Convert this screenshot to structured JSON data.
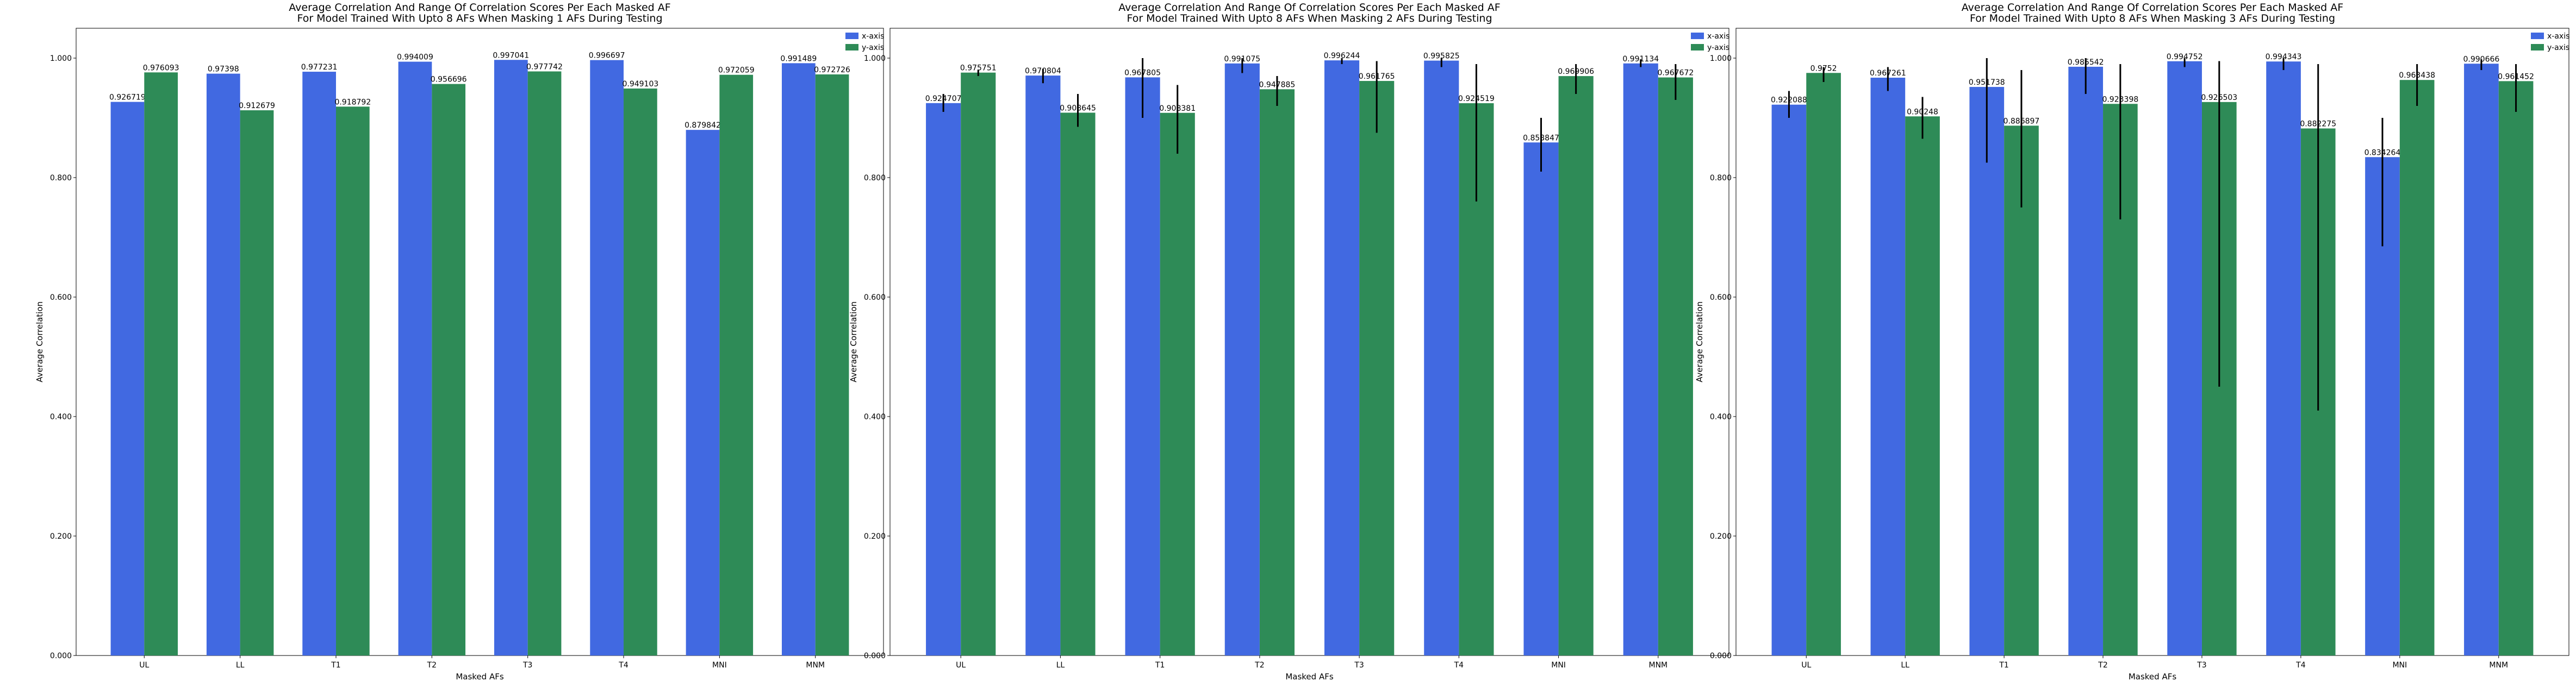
{
  "chart_data": [
    {
      "type": "bar",
      "title": "Average Correlation And Range Of Correlation Scores Per Each Masked AF\nFor Model Trained With Upto 8 AFs When Masking 1 AFs During Testing",
      "xlabel": "Masked AFs",
      "ylabel": "Average Correlation",
      "ylim": [
        0,
        1.05
      ],
      "yticks": [
        "0.000",
        "0.200",
        "0.400",
        "0.600",
        "0.800",
        "1.000"
      ],
      "ytick_values": [
        0,
        0.2,
        0.4,
        0.6,
        0.8,
        1.0
      ],
      "grid": false,
      "legend_position": "top-right",
      "categories": [
        "UL",
        "LL",
        "T1",
        "T2",
        "T3",
        "T4",
        "MNI",
        "MNM"
      ],
      "series": [
        {
          "name": "x-axis",
          "color": "#4169e1",
          "values": [
            0.926719,
            0.97398,
            0.977231,
            0.994009,
            0.997041,
            0.996697,
            0.879842,
            0.991489
          ],
          "labels": [
            "0.926719",
            "0.97398",
            "0.977231",
            "0.994009",
            "0.997041",
            "0.996697",
            "0.879842",
            "0.991489"
          ],
          "error_low": [
            null,
            null,
            null,
            null,
            null,
            null,
            null,
            null
          ],
          "error_high": [
            null,
            null,
            null,
            null,
            null,
            null,
            null,
            null
          ]
        },
        {
          "name": "y-axis",
          "color": "#2e8b57",
          "values": [
            0.976093,
            0.912679,
            0.918792,
            0.956696,
            0.977742,
            0.949103,
            0.972059,
            0.972726
          ],
          "labels": [
            "0.976093",
            "0.912679",
            "0.918792",
            "0.956696",
            "0.977742",
            "0.949103",
            "0.972059",
            "0.972726"
          ],
          "error_low": [
            null,
            null,
            null,
            null,
            null,
            null,
            null,
            null
          ],
          "error_high": [
            null,
            null,
            null,
            null,
            null,
            null,
            null,
            null
          ]
        }
      ]
    },
    {
      "type": "bar",
      "title": "Average Correlation And Range Of Correlation Scores Per Each Masked AF\nFor Model Trained With Upto 8 AFs When Masking 2 AFs During Testing",
      "xlabel": "Masked AFs",
      "ylabel": "Average Correlation",
      "ylim": [
        0,
        1.05
      ],
      "yticks": [
        "0.000",
        "0.200",
        "0.400",
        "0.600",
        "0.800",
        "1.000"
      ],
      "ytick_values": [
        0,
        0.2,
        0.4,
        0.6,
        0.8,
        1.0
      ],
      "grid": false,
      "legend_position": "top-right",
      "categories": [
        "UL",
        "LL",
        "T1",
        "T2",
        "T3",
        "T4",
        "MNI",
        "MNM"
      ],
      "series": [
        {
          "name": "x-axis",
          "color": "#4169e1",
          "values": [
            0.924707,
            0.970804,
            0.967805,
            0.991075,
            0.996244,
            0.995825,
            0.858847,
            0.991134
          ],
          "labels": [
            "0.924707",
            "0.970804",
            "0.967805",
            "0.991075",
            "0.996244",
            "0.995825",
            "0.858847",
            "0.991134"
          ],
          "error_low": [
            0.91,
            0.958,
            0.9,
            0.975,
            0.99,
            0.985,
            0.81,
            0.985
          ],
          "error_high": [
            0.94,
            0.982,
            1.0,
            1.0,
            1.0,
            1.0,
            0.9,
            0.998
          ]
        },
        {
          "name": "y-axis",
          "color": "#2e8b57",
          "values": [
            0.975751,
            0.908645,
            0.908381,
            0.947885,
            0.961765,
            0.924519,
            0.969906,
            0.967672
          ],
          "labels": [
            "0.975751",
            "0.908645",
            "0.908381",
            "0.947885",
            "0.961765",
            "0.924519",
            "0.969906",
            "0.967672"
          ],
          "error_low": [
            0.97,
            0.885,
            0.84,
            0.92,
            0.875,
            0.76,
            0.94,
            0.93
          ],
          "error_high": [
            0.98,
            0.94,
            0.955,
            0.97,
            0.995,
            0.99,
            0.99,
            0.99
          ]
        }
      ]
    },
    {
      "type": "bar",
      "title": "Average Correlation And Range Of Correlation Scores Per Each Masked AF\nFor Model Trained With Upto 8 AFs When Masking 3 AFs During Testing",
      "xlabel": "Masked AFs",
      "ylabel": "Average Correlation",
      "ylim": [
        0,
        1.05
      ],
      "yticks": [
        "0.000",
        "0.200",
        "0.400",
        "0.600",
        "0.800",
        "1.000"
      ],
      "ytick_values": [
        0,
        0.2,
        0.4,
        0.6,
        0.8,
        1.0
      ],
      "grid": false,
      "legend_position": "top-right",
      "categories": [
        "UL",
        "LL",
        "T1",
        "T2",
        "T3",
        "T4",
        "MNI",
        "MNM"
      ],
      "series": [
        {
          "name": "x-axis",
          "color": "#4169e1",
          "values": [
            0.922088,
            0.967261,
            0.951738,
            0.985542,
            0.994752,
            0.994343,
            0.834264,
            0.990666
          ],
          "labels": [
            "0.922088",
            "0.967261",
            "0.951738",
            "0.985542",
            "0.994752",
            "0.994343",
            "0.834264",
            "0.990666"
          ],
          "error_low": [
            0.9,
            0.945,
            0.825,
            0.94,
            0.985,
            0.98,
            0.685,
            0.98
          ],
          "error_high": [
            0.945,
            0.985,
            1.0,
            1.0,
            1.0,
            1.0,
            0.9,
            0.998
          ]
        },
        {
          "name": "y-axis",
          "color": "#2e8b57",
          "values": [
            0.9752,
            0.90248,
            0.886897,
            0.923398,
            0.926503,
            0.882275,
            0.963438,
            0.961452
          ],
          "labels": [
            "0.9752",
            "0.90248",
            "0.886897",
            "0.923398",
            "0.926503",
            "0.882275",
            "0.963438",
            "0.961452"
          ],
          "error_low": [
            0.96,
            0.865,
            0.75,
            0.73,
            0.45,
            0.41,
            0.92,
            0.91
          ],
          "error_high": [
            0.985,
            0.935,
            0.98,
            0.99,
            0.995,
            0.99,
            0.99,
            0.99
          ]
        }
      ]
    }
  ]
}
